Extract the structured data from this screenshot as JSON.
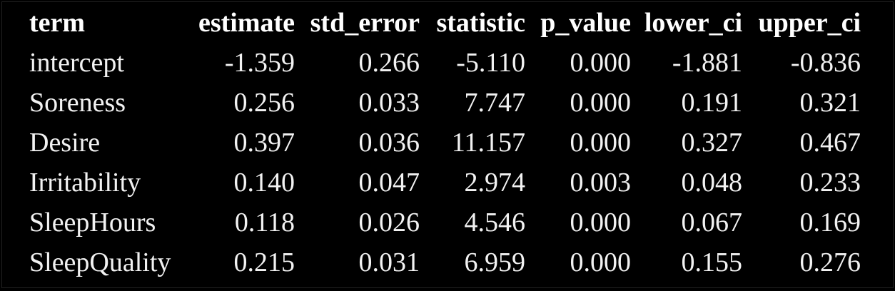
{
  "table": {
    "headers": [
      "term",
      "estimate",
      "std_error",
      "statistic",
      "p_value",
      "lower_ci",
      "upper_ci"
    ],
    "rows": [
      [
        "intercept",
        "-1.359",
        "0.266",
        "-5.110",
        "0.000",
        "-1.881",
        "-0.836"
      ],
      [
        "Soreness",
        "0.256",
        "0.033",
        "7.747",
        "0.000",
        "0.191",
        "0.321"
      ],
      [
        "Desire",
        "0.397",
        "0.036",
        "11.157",
        "0.000",
        "0.327",
        "0.467"
      ],
      [
        "Irritability",
        "0.140",
        "0.047",
        "2.974",
        "0.003",
        "0.048",
        "0.233"
      ],
      [
        "SleepHours",
        "0.118",
        "0.026",
        "4.546",
        "0.000",
        "0.067",
        "0.169"
      ],
      [
        "SleepQuality",
        "0.215",
        "0.031",
        "6.959",
        "0.000",
        "0.155",
        "0.276"
      ]
    ]
  },
  "colors": {
    "background": "#000000",
    "text": "#f2f2f2"
  }
}
